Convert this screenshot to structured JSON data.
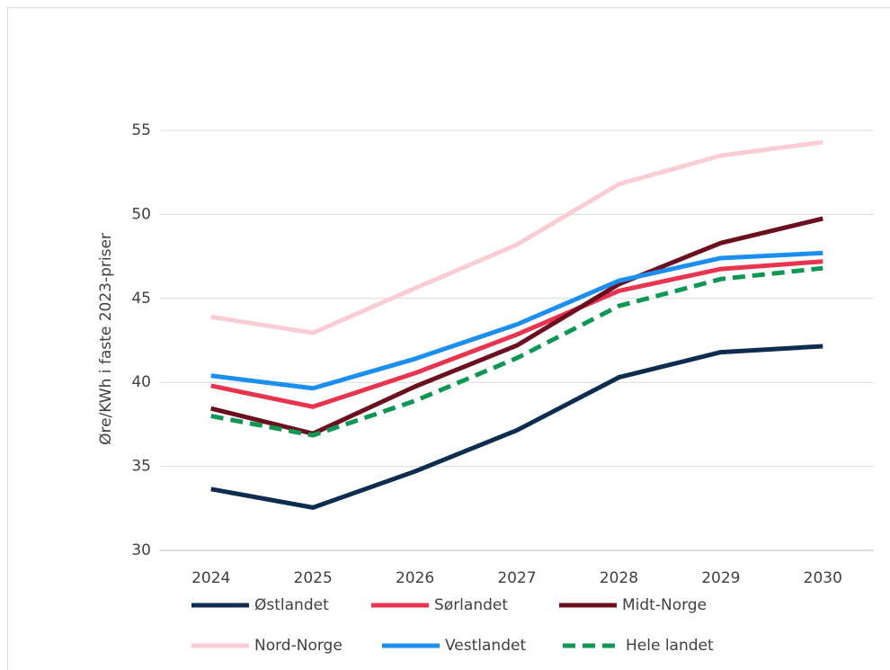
{
  "chart_data": {
    "type": "line",
    "y_label": "Øre/KWh i faste 2023-priser",
    "categories": [
      "2024",
      "2025",
      "2026",
      "2027",
      "2028",
      "2029",
      "2030"
    ],
    "series": [
      {
        "name": "Østlandet",
        "color": "#0c2d4f",
        "style": "solid",
        "values": [
          33.65,
          32.55,
          34.7,
          37.15,
          40.3,
          41.8,
          42.15
        ]
      },
      {
        "name": "Sørlandet",
        "color": "#e8344e",
        "style": "solid",
        "values": [
          39.8,
          38.55,
          40.55,
          42.85,
          45.45,
          46.75,
          47.2
        ]
      },
      {
        "name": "Midt-Norge",
        "color": "#6b0f1f",
        "style": "solid",
        "values": [
          38.45,
          36.95,
          39.75,
          42.2,
          45.85,
          48.3,
          49.75
        ]
      },
      {
        "name": "Nord-Norge",
        "color": "#f9cdd3",
        "style": "solid",
        "values": [
          43.9,
          42.95,
          45.6,
          48.2,
          51.8,
          53.5,
          54.3
        ]
      },
      {
        "name": "Vestlandet",
        "color": "#1a8ff0",
        "style": "solid",
        "values": [
          40.4,
          39.65,
          41.4,
          43.45,
          46.05,
          47.4,
          47.7
        ]
      },
      {
        "name": "Hele landet",
        "color": "#0e9655",
        "style": "dashed",
        "values": [
          38.0,
          36.85,
          38.9,
          41.45,
          44.55,
          46.15,
          46.8
        ]
      }
    ],
    "ylim": [
      30,
      55
    ],
    "yticks": [
      30,
      35,
      40,
      45,
      50,
      55
    ],
    "grid": true,
    "legend": "bottom"
  }
}
